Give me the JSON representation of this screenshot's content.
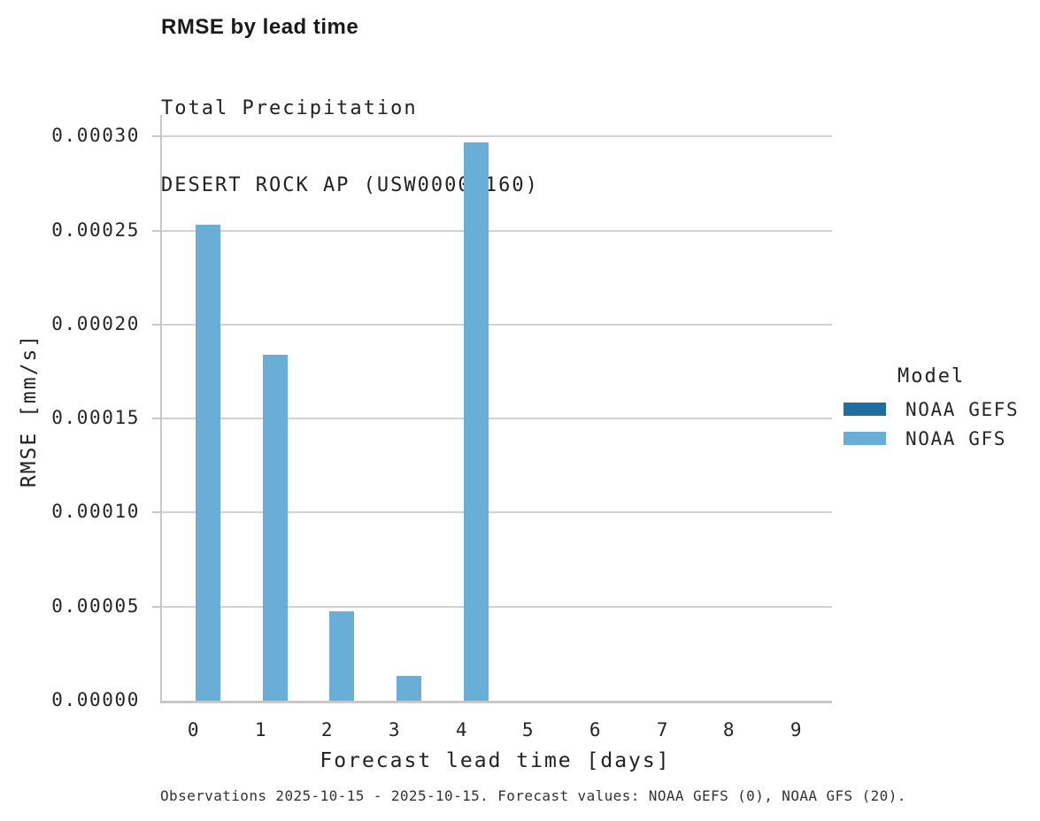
{
  "header": {
    "title": "RMSE by lead time",
    "subtitle_line1": "Total Precipitation",
    "subtitle_line2": "DESERT ROCK AP (USW00003160)"
  },
  "chart_data": {
    "type": "bar",
    "title": "RMSE by lead time",
    "subtitle": [
      "Total Precipitation",
      "DESERT ROCK AP (USW00003160)"
    ],
    "categories": [
      "0",
      "1",
      "2",
      "3",
      "4",
      "5",
      "6",
      "7",
      "8",
      "9"
    ],
    "series": [
      {
        "name": "NOAA GEFS",
        "color": "#1e6fa0",
        "values": [
          0,
          0,
          0,
          0,
          0,
          0,
          0,
          0,
          0,
          0
        ]
      },
      {
        "name": "NOAA GFS",
        "color": "#68aed7",
        "values": [
          0.000253,
          0.000184,
          4.76e-05,
          1.32e-05,
          0.000297,
          0,
          0,
          0,
          0,
          0
        ]
      }
    ],
    "xlabel": "Forecast lead time [days]",
    "ylabel": "RMSE [mm/s]",
    "ylim": [
      0,
      0.0003
    ],
    "ytick_step": 5e-05,
    "ytick_labels": [
      "0.00000",
      "0.00005",
      "0.00010",
      "0.00015",
      "0.00020",
      "0.00025",
      "0.00030"
    ],
    "grid": "horizontal",
    "legend_title": "Model",
    "legend_position": "right",
    "colors": {
      "gridline": "#d2d2d2",
      "axis": "#c8c8c8",
      "text": "#262626"
    }
  },
  "legend": {
    "title": "Model",
    "entries": [
      {
        "label": "NOAA GEFS",
        "color": "#1e6fa0"
      },
      {
        "label": "NOAA GFS",
        "color": "#68aed7"
      }
    ]
  },
  "caption": "Observations 2025-10-15 - 2025-10-15. Forecast values: NOAA GEFS (0), NOAA GFS (20)."
}
